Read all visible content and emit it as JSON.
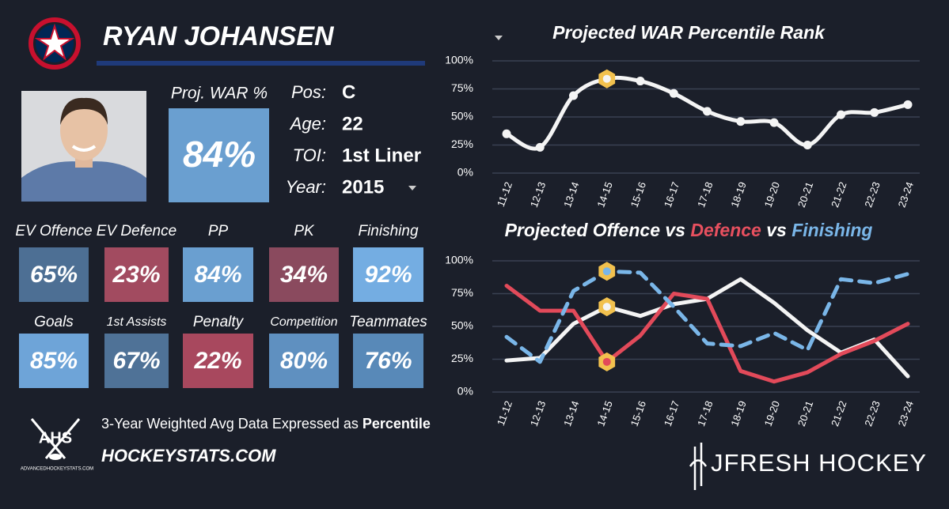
{
  "header": {
    "name": "RYAN JOHANSEN"
  },
  "summary": {
    "label": "Proj. WAR %",
    "value": "84%",
    "color": "#6a9fd0"
  },
  "info": [
    {
      "label": "Pos:",
      "value": "C"
    },
    {
      "label": "Age:",
      "value": "22"
    },
    {
      "label": "TOI:",
      "value": "1st Liner"
    },
    {
      "label": "Year:",
      "value": "2015"
    }
  ],
  "tiles": [
    {
      "label": "EV Offence",
      "value": "65%",
      "color": "#4d6f94"
    },
    {
      "label": "EV Defence",
      "value": "23%",
      "color": "#a24b60"
    },
    {
      "label": "PP",
      "value": "84%",
      "color": "#6a9fd0"
    },
    {
      "label": "PK",
      "value": "34%",
      "color": "#8a4a5e"
    },
    {
      "label": "Finishing",
      "value": "92%",
      "color": "#74ade2"
    },
    {
      "label": "Goals",
      "value": "85%",
      "color": "#6ea4d8"
    },
    {
      "label": "1st Assists",
      "value": "67%",
      "color": "#4f7297"
    },
    {
      "label": "Penalty",
      "value": "22%",
      "color": "#a8485e"
    },
    {
      "label": "Competition",
      "value": "80%",
      "color": "#5f90c0"
    },
    {
      "label": "Teammates",
      "value": "76%",
      "color": "#5889b8"
    }
  ],
  "footer": {
    "logo": "AHS",
    "logo_sub": "ADVANCEDHOCKEYSTATS.COM",
    "note": "3-Year Weighted Avg Data Expressed as ",
    "note_bold": "Percentile",
    "site": "HOCKEYSTATS.COM",
    "brand": "JFRESH HOCKEY"
  },
  "chart_data": [
    {
      "type": "line",
      "title_parts": [
        {
          "text": "Projected WAR Percentile Rank",
          "color": "#ffffff"
        }
      ],
      "categories": [
        "11-12",
        "12-13",
        "13-14",
        "14-15",
        "15-16",
        "16-17",
        "17-18",
        "18-19",
        "19-20",
        "20-21",
        "21-22",
        "22-23",
        "23-24"
      ],
      "highlighted_category": "14-15",
      "smooth": true,
      "markers": true,
      "grid": true,
      "ylim": [
        0,
        100
      ],
      "yticks": [
        {
          "value": 0,
          "label": "0%"
        },
        {
          "value": 25,
          "label": "25%"
        },
        {
          "value": 50,
          "label": "50%"
        },
        {
          "value": 75,
          "label": "75%"
        },
        {
          "value": 100,
          "label": "100%"
        }
      ],
      "series": [
        {
          "color": "#f4f4f4",
          "dashed": false,
          "values": [
            35,
            23,
            69,
            84,
            82,
            71,
            55,
            46,
            45,
            25,
            52,
            54,
            61
          ]
        }
      ]
    },
    {
      "type": "line",
      "title_parts": [
        {
          "text": "Projected Offence vs ",
          "color": "#ffffff"
        },
        {
          "text": "Defence",
          "color": "#e8505f"
        },
        {
          "text": " vs ",
          "color": "#ffffff"
        },
        {
          "text": "Finishing",
          "color": "#7ab6e8"
        }
      ],
      "categories": [
        "11-12",
        "12-13",
        "13-14",
        "14-15",
        "15-16",
        "16-17",
        "17-18",
        "18-19",
        "19-20",
        "20-21",
        "21-22",
        "22-23",
        "23-24"
      ],
      "highlighted_category": "14-15",
      "smooth": false,
      "markers": false,
      "grid": true,
      "ylim": [
        0,
        100
      ],
      "yticks": [
        {
          "value": 0,
          "label": "0%"
        },
        {
          "value": 25,
          "label": "25%"
        },
        {
          "value": 50,
          "label": "50%"
        },
        {
          "value": 75,
          "label": "75%"
        },
        {
          "value": 100,
          "label": "100%"
        }
      ],
      "series": [
        {
          "color": "#f4f4f4",
          "dashed": false,
          "values": [
            24,
            26,
            52,
            65,
            58,
            67,
            71,
            86,
            68,
            47,
            30,
            40,
            12
          ]
        },
        {
          "color": "#e24a5a",
          "dashed": false,
          "values": [
            81,
            62,
            62,
            23,
            43,
            75,
            71,
            16,
            8,
            15,
            29,
            39,
            52
          ]
        },
        {
          "color": "#7ab6e8",
          "dashed": true,
          "values": [
            42,
            23,
            77,
            92,
            91,
            65,
            37,
            35,
            45,
            32,
            86,
            83,
            90
          ]
        }
      ]
    }
  ]
}
